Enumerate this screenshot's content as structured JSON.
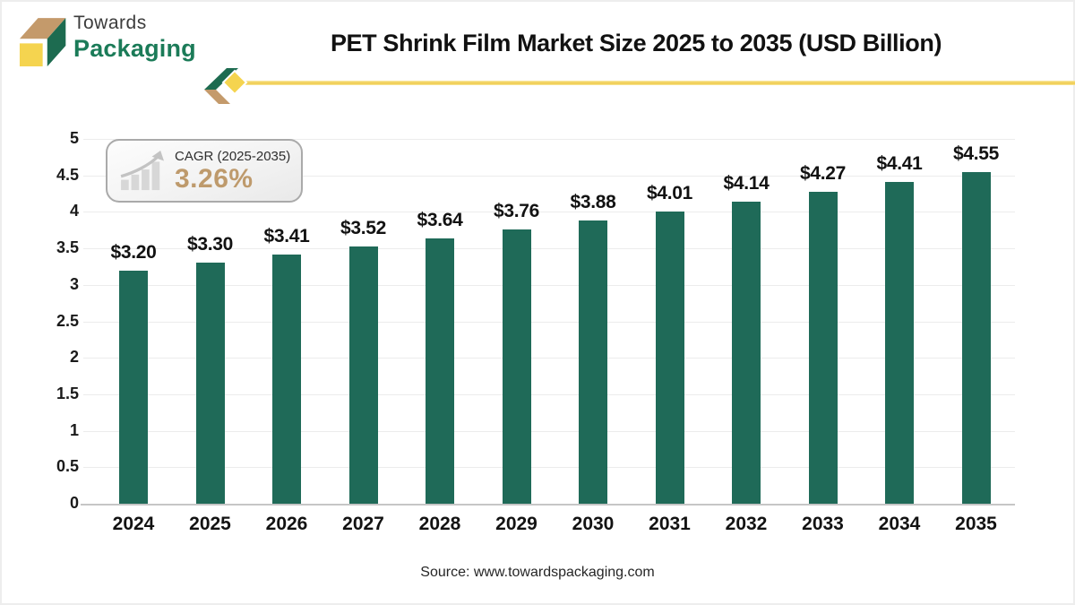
{
  "brand": {
    "name_line1": "Towards",
    "name_line2": "Packaging"
  },
  "header": {
    "title": "PET Shrink Film Market Size 2025 to 2035 (USD Billion)"
  },
  "cagr_badge": {
    "label": "CAGR (2025-2035)",
    "value": "3.26%"
  },
  "footer": {
    "source": "Source: www.towardspackaging.com"
  },
  "colors": {
    "bar": "#1F6A58",
    "brand_green": "#1B7B58",
    "logo_cube_green": "#1D6B50",
    "accent_yellow": "#F5D44F",
    "accent_tan": "#C49A6B",
    "cagr_value": "#BE9A6C",
    "gridline": "#ececec"
  },
  "chart_data": {
    "type": "bar",
    "title": "PET Shrink Film Market Size 2025 to 2035 (USD Billion)",
    "unit": "USD Billion",
    "categories": [
      "2024",
      "2025",
      "2026",
      "2027",
      "2028",
      "2029",
      "2030",
      "2031",
      "2032",
      "2033",
      "2034",
      "2035"
    ],
    "values": [
      3.2,
      3.3,
      3.41,
      3.52,
      3.64,
      3.76,
      3.88,
      4.01,
      4.14,
      4.27,
      4.41,
      4.55
    ],
    "value_labels": [
      "$3.20",
      "$3.30",
      "$3.41",
      "$3.52",
      "$3.64",
      "$3.76",
      "$3.88",
      "$4.01",
      "$4.14",
      "$4.27",
      "$4.41",
      "$4.55"
    ],
    "xlabel": "",
    "ylabel": "",
    "ylim": [
      0,
      5
    ],
    "ytick_step": 0.5,
    "yticks": [
      "5",
      "4.5",
      "4",
      "3.5",
      "3",
      "2.5",
      "2",
      "1.5",
      "1",
      "0.5",
      "0"
    ],
    "grid": true,
    "legend_position": "none",
    "bar_color": "#1F6A58"
  }
}
